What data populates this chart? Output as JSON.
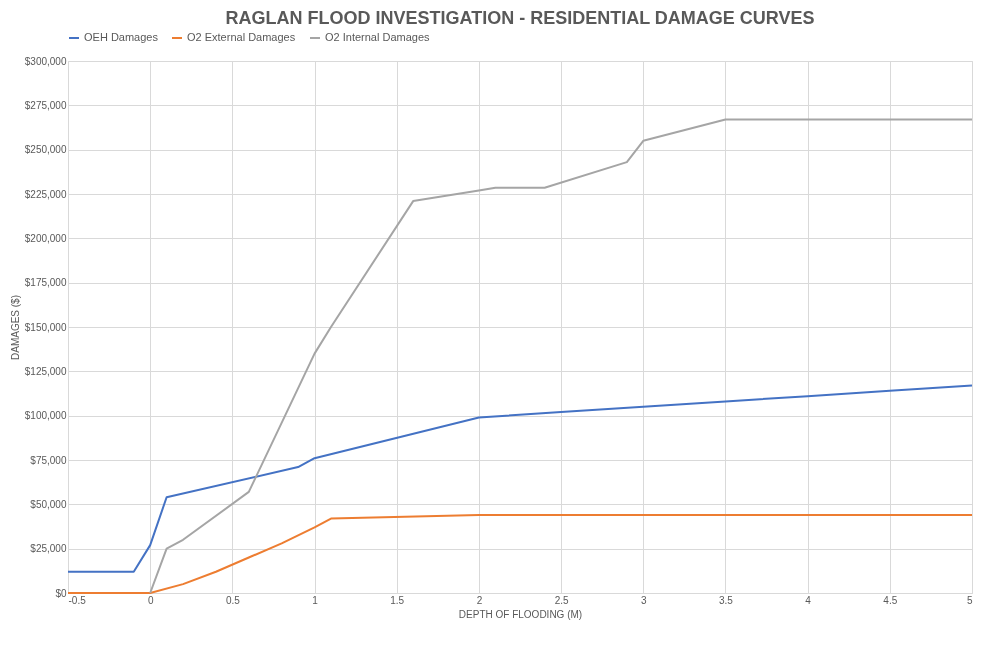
{
  "chart_data": {
    "type": "line",
    "title": "RAGLAN FLOOD INVESTIGATION - RESIDENTIAL DAMAGE CURVES",
    "xlabel": "DEPTH OF FLOODING (M)",
    "ylabel": "DAMAGES ($)",
    "xlim": [
      -0.5,
      5
    ],
    "xticks": [
      -0.5,
      0,
      0.5,
      1,
      1.5,
      2,
      2.5,
      3,
      3.5,
      4,
      4.5,
      5
    ],
    "ylim": [
      0,
      300000
    ],
    "yticks": [
      {
        "value": 0,
        "label": "$0"
      },
      {
        "value": 25000,
        "label": "$25,000"
      },
      {
        "value": 50000,
        "label": "$50,000"
      },
      {
        "value": 75000,
        "label": "$75,000"
      },
      {
        "value": 100000,
        "label": "$100,000"
      },
      {
        "value": 125000,
        "label": "$125,000"
      },
      {
        "value": 150000,
        "label": "$150,000"
      },
      {
        "value": 175000,
        "label": "$175,000"
      },
      {
        "value": 200000,
        "label": "$200,000"
      },
      {
        "value": 225000,
        "label": "$225,000"
      },
      {
        "value": 250000,
        "label": "$250,000"
      },
      {
        "value": 275000,
        "label": "$275,000"
      },
      {
        "value": 300000,
        "label": "$300,000"
      }
    ],
    "grid": true,
    "legend": "top",
    "marker": "none",
    "line_style": "solid",
    "series": [
      {
        "name": "OEH Damages",
        "color": "#4472c4",
        "x": [
          -0.5,
          -0.1,
          0,
          0.1,
          0.9,
          1,
          2,
          2.5,
          3,
          3.5,
          4,
          4.5,
          5
        ],
        "values": [
          12000,
          12000,
          27000,
          54000,
          71000,
          76000,
          99000,
          102000,
          105000,
          108000,
          111000,
          114000,
          117000
        ]
      },
      {
        "name": "O2 External Damages",
        "color": "#ed7d31",
        "x": [
          -0.5,
          0,
          0.2,
          0.4,
          0.6,
          0.8,
          1,
          1.1,
          2,
          5
        ],
        "values": [
          0,
          0,
          5000,
          12000,
          20000,
          28000,
          37000,
          42000,
          44000,
          44000
        ]
      },
      {
        "name": "O2 Internal Damages",
        "color": "#a5a5a5",
        "x": [
          0,
          0.1,
          0.2,
          0.6,
          1,
          1.1,
          1.6,
          2,
          2.1,
          2.4,
          2.9,
          3,
          3.5,
          5
        ],
        "values": [
          0,
          25000,
          30000,
          57000,
          135000,
          150000,
          221000,
          227000,
          228500,
          228500,
          243000,
          255000,
          267000,
          267000
        ]
      }
    ]
  }
}
